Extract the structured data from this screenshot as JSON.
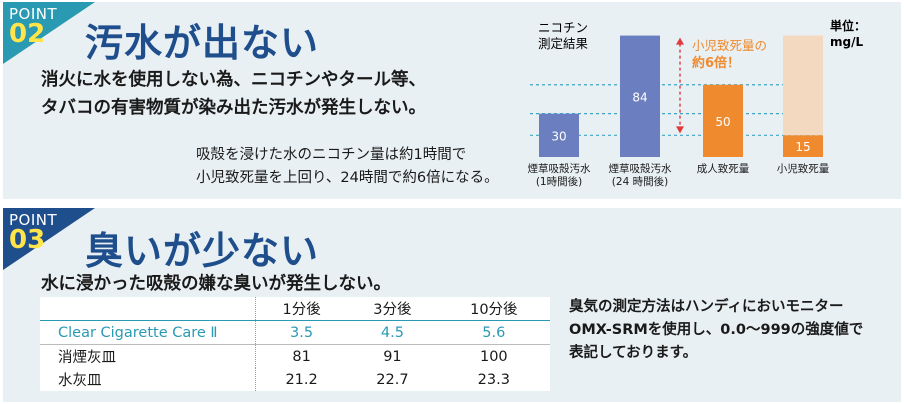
{
  "point1": {
    "badge_word": "POINT",
    "badge_num": "02",
    "heading": "汚水が出ない",
    "lead_lines": [
      "消火に水を使用しない為、ニコチンやタール等、",
      "タバコの有害物質が染み出た汚水が発生しない。"
    ],
    "note_lines": [
      "吸殻を浸けた水のニコチン量は約1時間で",
      "小児致死量を上回り、24時間で約6倍になる。"
    ]
  },
  "chart_data": {
    "type": "bar",
    "title_lines": [
      "ニコチン",
      "測定結果"
    ],
    "unit_lines": [
      "単位：",
      "mg/L"
    ],
    "annotation_lines": [
      "小児致死量の",
      "約6倍！"
    ],
    "categories": [
      [
        "煙草吸殻汚水",
        "(1時間後)"
      ],
      [
        "煙草吸殻汚水",
        "(24 時間後)"
      ],
      [
        "成人致死量"
      ],
      [
        "小児致死量"
      ]
    ],
    "values": [
      30,
      84,
      50,
      15
    ],
    "value_labels": [
      "30",
      "84",
      "50",
      "15"
    ],
    "reference_lines": [
      15,
      30,
      50
    ],
    "colors": [
      "#6b7fc0",
      "#6b7fc0",
      "#ef8a2f",
      "#ef8a2f"
    ],
    "ylim": [
      0,
      92
    ],
    "grid": false
  },
  "point2": {
    "badge_word": "POINT",
    "badge_num": "03",
    "heading": "臭いが少ない",
    "lead": "水に浸かった吸殻の嫌な臭いが発生しない。",
    "table": {
      "headers": [
        "",
        "1分後",
        "3分後",
        "10分後"
      ],
      "rows": [
        [
          "Clear Cigarette Care Ⅱ",
          "3.5",
          "4.5",
          "5.6"
        ],
        [
          "消煙灰皿",
          "81",
          "91",
          "100"
        ],
        [
          "水灰皿",
          "21.2",
          "22.7",
          "23.3"
        ]
      ]
    },
    "note_lines": [
      "臭気の測定方法はハンディにおいモニター",
      "OMX-SRMを使用し、0.0〜999の強度値で",
      "表記しております。"
    ]
  },
  "colors": {
    "accent_teal": "#2a9ab2",
    "heading_blue": "#1f4e8c",
    "badge_yellow": "#ffe54a",
    "panel_bg": "#e9f0f3"
  }
}
